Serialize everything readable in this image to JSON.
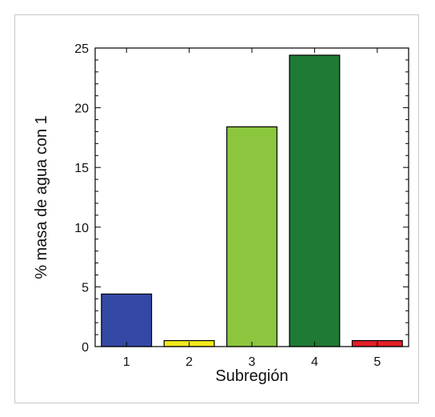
{
  "chart_data": {
    "type": "bar",
    "title": "",
    "xlabel": "Subregión",
    "ylabel": "% masa de agua con 1",
    "categories": [
      "1",
      "2",
      "3",
      "4",
      "5"
    ],
    "values": [
      4.4,
      0.5,
      18.4,
      24.4,
      0.5
    ],
    "colors": [
      "#3448a6",
      "#f2ea1c",
      "#8cc63f",
      "#1e7a35",
      "#e21f26"
    ],
    "ylim": [
      0,
      25
    ],
    "yticks": [
      "0",
      "5",
      "10",
      "15",
      "20",
      "25"
    ],
    "grid": false,
    "legend": "none"
  }
}
